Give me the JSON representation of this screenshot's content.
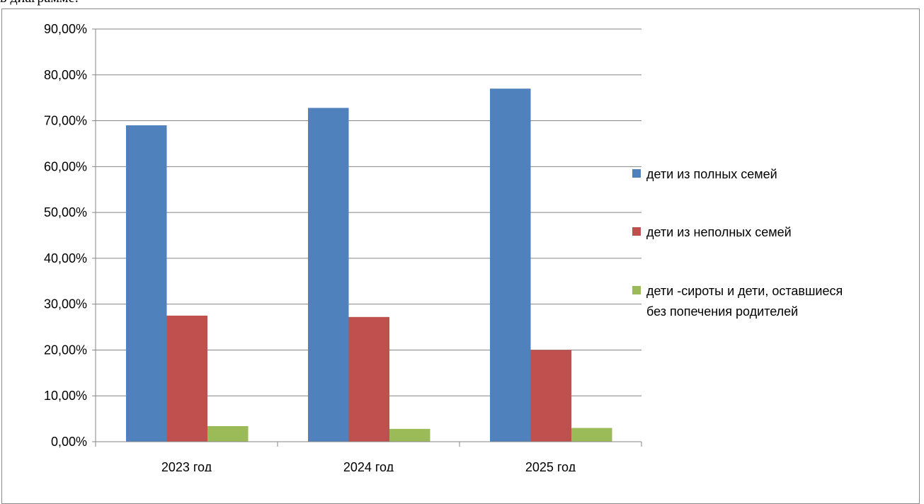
{
  "intro_text": "в диаграмме:",
  "chart_data": {
    "type": "bar",
    "categories": [
      "2023 год",
      "2024 год",
      "2025 год"
    ],
    "series": [
      {
        "name": "дети из полных семей",
        "color": "#4f81bd",
        "values": [
          0.69,
          0.728,
          0.77
        ]
      },
      {
        "name": "дети из неполных семей",
        "color": "#c0504d",
        "values": [
          0.275,
          0.272,
          0.2
        ]
      },
      {
        "name": "дети -сироты и дети, оставшиеся без попечения родителей",
        "color": "#9bbb59",
        "values": [
          0.034,
          0.028,
          0.03
        ]
      }
    ],
    "y_ticks": [
      "0,00%",
      "10,00%",
      "20,00%",
      "30,00%",
      "40,00%",
      "50,00%",
      "60,00%",
      "70,00%",
      "80,00%",
      "90,00%"
    ],
    "ylim": [
      0,
      0.9
    ],
    "grid": true,
    "legend_position": "right",
    "legend_lines": [
      [
        "дети из полных семей"
      ],
      [
        "дети из неполных семей"
      ],
      [
        "дети -сироты и дети, оставшиеся",
        "без попечения родителей"
      ]
    ]
  }
}
